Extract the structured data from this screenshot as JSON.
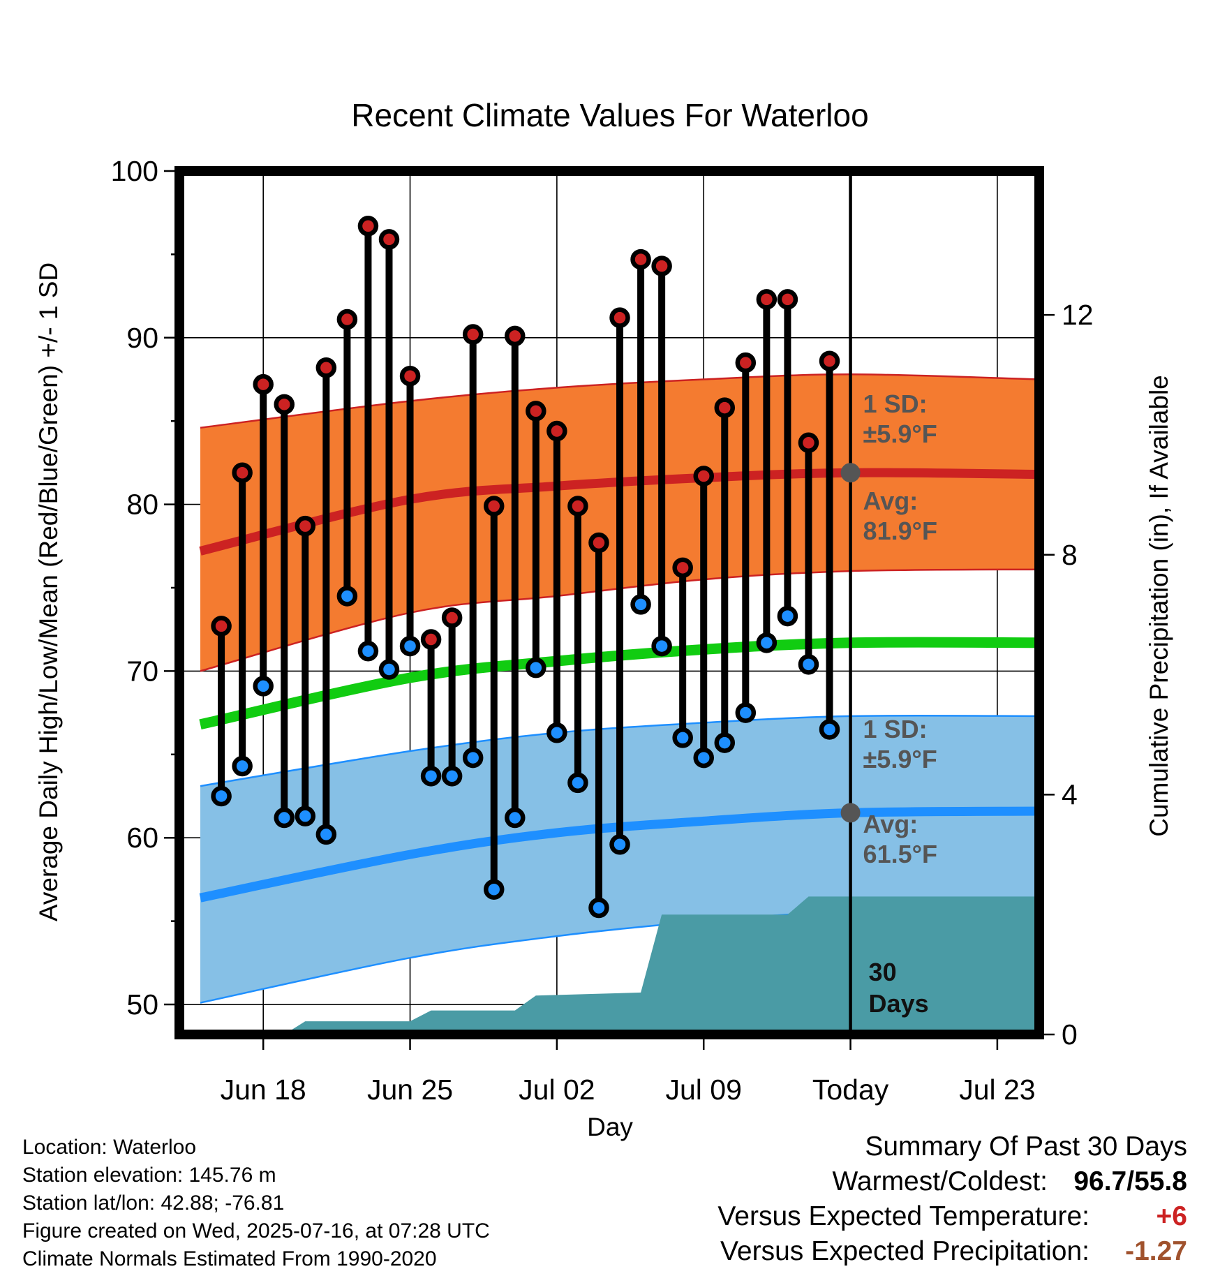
{
  "chart_data": {
    "type": "line",
    "title": "Recent Climate Values For Waterloo",
    "xlabel": "Day",
    "ylabel": "Average Daily High/Low/Mean (Red/Blue/Green) +/- 1 SD",
    "y2label": "Cumulative Precipitation (in), If Available",
    "ylim": [
      48.2,
      100
    ],
    "y2lim": [
      0,
      14.4
    ],
    "yticks": [
      50,
      60,
      70,
      80,
      90,
      100
    ],
    "y2ticks": [
      0,
      4,
      8,
      12
    ],
    "xlim_days": [
      -32,
      9
    ],
    "xticks": [
      {
        "label": "Jun 18",
        "day": -28
      },
      {
        "label": "Jun 25",
        "day": -21
      },
      {
        "label": "Jul 02",
        "day": -14
      },
      {
        "label": "Jul 09",
        "day": -7
      },
      {
        "label": "Today",
        "day": 0
      },
      {
        "label": "Jul 23",
        "day": 7
      }
    ],
    "grid": true,
    "highs": [
      72.7,
      81.9,
      87.2,
      86.0,
      78.7,
      88.2,
      91.1,
      96.7,
      95.9,
      87.7,
      71.9,
      73.2,
      90.2,
      79.9,
      90.1,
      85.6,
      84.4,
      79.9,
      77.7,
      91.2,
      94.7,
      94.3,
      76.2,
      81.7,
      85.8,
      88.5,
      92.3,
      92.3,
      83.7,
      88.6
    ],
    "lows": [
      62.5,
      64.3,
      69.1,
      61.2,
      61.3,
      60.2,
      74.5,
      71.2,
      70.1,
      71.5,
      63.7,
      63.7,
      64.8,
      56.9,
      61.2,
      70.2,
      66.3,
      63.3,
      55.8,
      59.6,
      74.0,
      71.5,
      66.0,
      64.8,
      65.7,
      67.5,
      71.7,
      73.3,
      70.4,
      66.5
    ],
    "normal_high": [
      [
        -31,
        77.2
      ],
      [
        -21,
        80.3
      ],
      [
        -14,
        81.1
      ],
      [
        -7,
        81.6
      ],
      [
        0,
        81.9
      ],
      [
        9,
        81.8
      ]
    ],
    "normal_low": [
      [
        -31,
        56.4
      ],
      [
        -21,
        59.0
      ],
      [
        -14,
        60.3
      ],
      [
        -7,
        61.0
      ],
      [
        0,
        61.5
      ],
      [
        9,
        61.6
      ]
    ],
    "normal_mean": [
      [
        -31,
        66.8
      ],
      [
        -21,
        69.6
      ],
      [
        -14,
        70.6
      ],
      [
        -7,
        71.3
      ],
      [
        0,
        71.7
      ],
      [
        9,
        71.7
      ]
    ],
    "sd_high_band": {
      "upper": [
        [
          -31,
          84.6
        ],
        [
          -21,
          86.2
        ],
        [
          -14,
          87.0
        ],
        [
          -7,
          87.5
        ],
        [
          0,
          87.8
        ],
        [
          9,
          87.5
        ]
      ],
      "lower": [
        [
          -31,
          70.0
        ],
        [
          -21,
          73.5
        ],
        [
          -14,
          74.5
        ],
        [
          -7,
          75.5
        ],
        [
          0,
          76.0
        ],
        [
          9,
          76.1
        ]
      ]
    },
    "sd_low_band": {
      "upper": [
        [
          -31,
          63.1
        ],
        [
          -21,
          65.2
        ],
        [
          -14,
          66.3
        ],
        [
          -7,
          66.9
        ],
        [
          0,
          67.3
        ],
        [
          9,
          67.3
        ]
      ],
      "lower": [
        [
          -31,
          50.1
        ],
        [
          -21,
          52.8
        ],
        [
          -14,
          54.1
        ],
        [
          -7,
          55.0
        ],
        [
          0,
          55.6
        ],
        [
          9,
          55.9
        ]
      ]
    },
    "precip_cumulative_in": [
      [
        -31,
        0.0
      ],
      [
        -27,
        0.0
      ],
      [
        -26,
        0.22
      ],
      [
        -21,
        0.22
      ],
      [
        -20,
        0.4
      ],
      [
        -16,
        0.4
      ],
      [
        -15,
        0.65
      ],
      [
        -10,
        0.7
      ],
      [
        -9,
        2.0
      ],
      [
        -3,
        2.0
      ],
      [
        -2,
        2.3
      ],
      [
        9,
        2.3
      ]
    ],
    "annotations": {
      "high_sd": "1 SD:",
      "high_sd_val": "±5.9°F",
      "high_avg": "Avg:",
      "high_avg_val": "81.9°F",
      "low_sd": "1 SD:",
      "low_sd_val": "±5.9°F",
      "low_avg": "Avg:",
      "low_avg_val": "61.5°F",
      "days_a": "30",
      "days_b": "Days"
    },
    "colors": {
      "high": "#cc2222",
      "low": "#1e8fff",
      "mean": "#11cc11",
      "high_band": "#f47b30",
      "low_band": "#86c0e6",
      "precip": "#4a9ba5"
    }
  },
  "footer": {
    "location": "Location: Waterloo",
    "elevation": "Station elevation: 145.76 m",
    "latlon": "Station lat/lon: 42.88; -76.81",
    "created": "Figure created on Wed, 2025-07-16, at 07:28 UTC",
    "normals": "Climate Normals Estimated From 1990-2020"
  },
  "summary": {
    "title": "Summary Of Past 30 Days",
    "warm_cold_label": "Warmest/Coldest:",
    "warm_cold_val": "96.7/55.8",
    "temp_label": "Versus Expected Temperature:",
    "temp_val": "+6",
    "precip_label": "Versus Expected Precipitation:",
    "precip_val": "-1.27"
  }
}
